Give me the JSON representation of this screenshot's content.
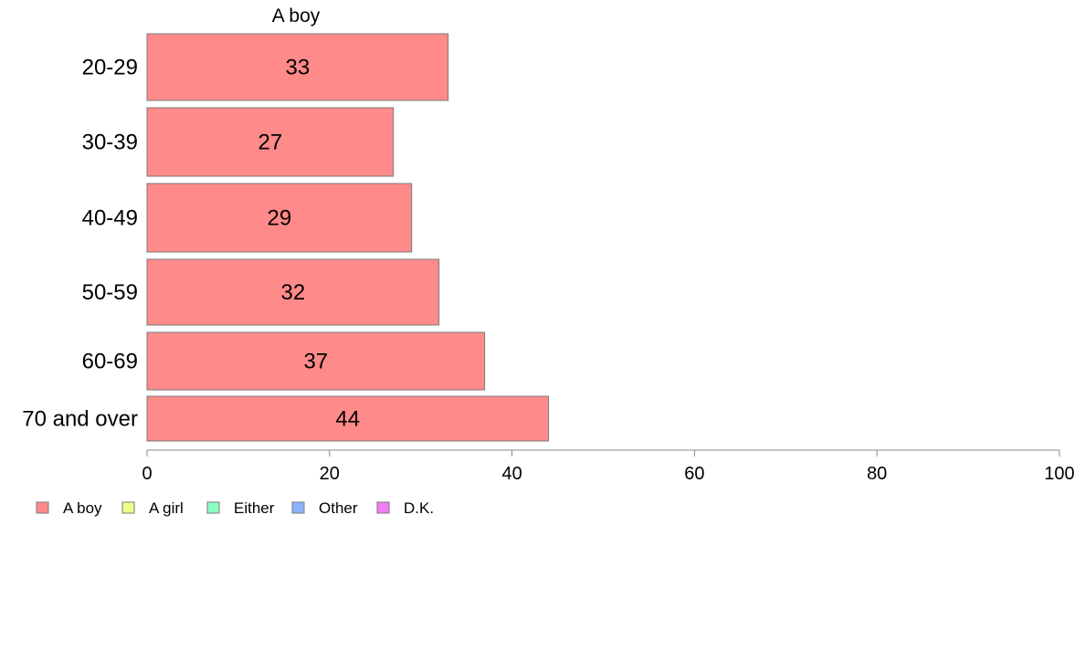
{
  "chart_data": {
    "type": "bar",
    "orientation": "horizontal",
    "title": "A boy",
    "categories": [
      "20-29",
      "30-39",
      "40-49",
      "50-59",
      "60-69",
      "70 and over"
    ],
    "series": [
      {
        "name": "A boy",
        "values": [
          33,
          27,
          29,
          32,
          37,
          44
        ],
        "color": "#ff8a8a"
      }
    ],
    "data_labels": [
      "33",
      "27",
      "29",
      "32",
      "37",
      "44"
    ],
    "xlim": [
      0,
      100
    ],
    "xticks": [
      0,
      20,
      40,
      60,
      80,
      100
    ],
    "tick_labels": [
      "0",
      "20",
      "40",
      "60",
      "80",
      "100"
    ],
    "grid": false,
    "legend": {
      "placement": "bottom-left",
      "items": [
        {
          "label": "A boy",
          "color": "#ff8a8a"
        },
        {
          "label": "A girl",
          "color": "#efff8a"
        },
        {
          "label": "Either",
          "color": "#8affc4"
        },
        {
          "label": "Other",
          "color": "#8ab4ff"
        },
        {
          "label": "D.K.",
          "color": "#f07df5"
        }
      ]
    }
  }
}
